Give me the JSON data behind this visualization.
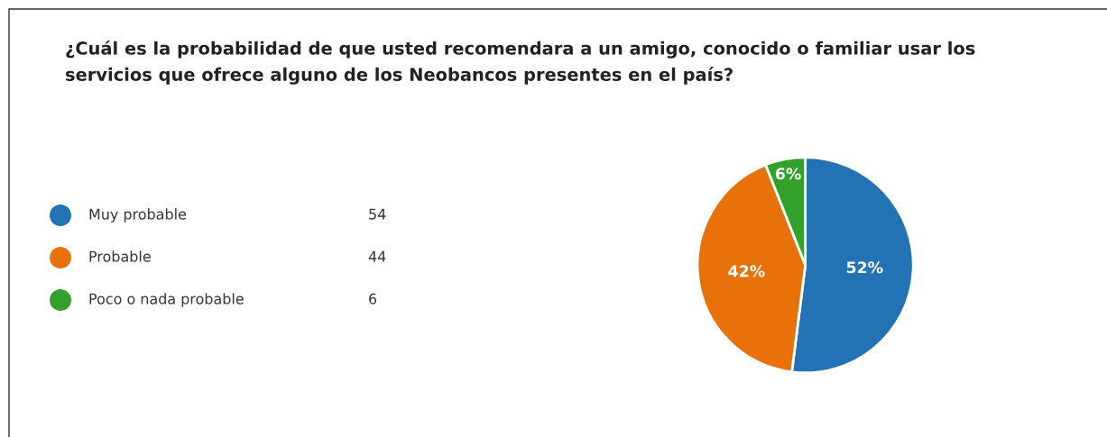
{
  "chart_data": {
    "type": "pie",
    "title": "¿Cuál es la probabilidad de que usted recomendara a un amigo, conocido o familiar usar los\nservicios que ofrece alguno de los Neobancos presentes en el país?",
    "categories": [
      "Muy probable",
      "Probable",
      "Poco o nada probable"
    ],
    "values": [
      52,
      42,
      6
    ],
    "annotations": [
      "54",
      "44",
      "6"
    ],
    "colors": [
      "#2272b4",
      "#e8710a",
      "#33a02c"
    ],
    "value_labels": [
      "52%",
      "42%",
      "6%"
    ],
    "legend": "left"
  }
}
